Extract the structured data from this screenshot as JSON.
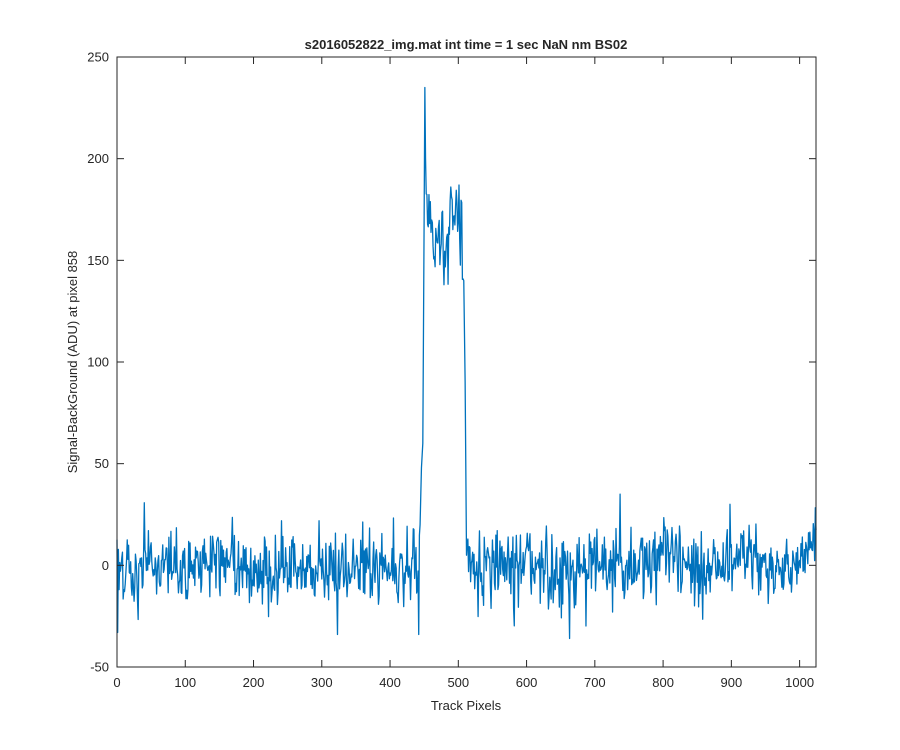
{
  "chart_data": {
    "type": "line",
    "title": "s2016052822_img.mat int time = 1 sec  NaN nm BS02",
    "xlabel": "Track Pixels",
    "ylabel": "Signal-BackGround (ADU) at pixel 858",
    "xlim": [
      0,
      1024
    ],
    "ylim": [
      -50,
      250
    ],
    "xticks": [
      0,
      100,
      200,
      300,
      400,
      500,
      600,
      700,
      800,
      900,
      1000
    ],
    "yticks": [
      -50,
      0,
      50,
      100,
      150,
      200,
      250
    ],
    "grid": false,
    "legend": "none",
    "series": [
      {
        "color": "#0072BD",
        "x": [
          0,
          50,
          100,
          150,
          200,
          250,
          300,
          350,
          400,
          440,
          444,
          446,
          448,
          450,
          451,
          452,
          453,
          455,
          458,
          462,
          466,
          470,
          475,
          480,
          485,
          490,
          495,
          500,
          505,
          508,
          510,
          512,
          520,
          560,
          600,
          650,
          700,
          750,
          800,
          850,
          900,
          950,
          1000,
          1024
        ],
        "y": [
          -2,
          3,
          -4,
          5,
          -3,
          2,
          -5,
          4,
          -2,
          1,
          20,
          48,
          60,
          175,
          235,
          200,
          185,
          170,
          178,
          165,
          155,
          150,
          158,
          148,
          160,
          185,
          168,
          170,
          160,
          140,
          90,
          5,
          2,
          -3,
          4,
          -5,
          3,
          -2,
          5,
          -3,
          4,
          -2,
          3,
          10
        ]
      }
    ],
    "noise": {
      "baseline_std": 9,
      "plateau_std": 9,
      "extremes": [
        {
          "x": 1,
          "y": -33
        },
        {
          "x": 323,
          "y": -34
        },
        {
          "x": 442,
          "y": -34
        },
        {
          "x": 663,
          "y": -36
        },
        {
          "x": 737,
          "y": 35
        },
        {
          "x": 898,
          "y": 30
        }
      ]
    }
  }
}
